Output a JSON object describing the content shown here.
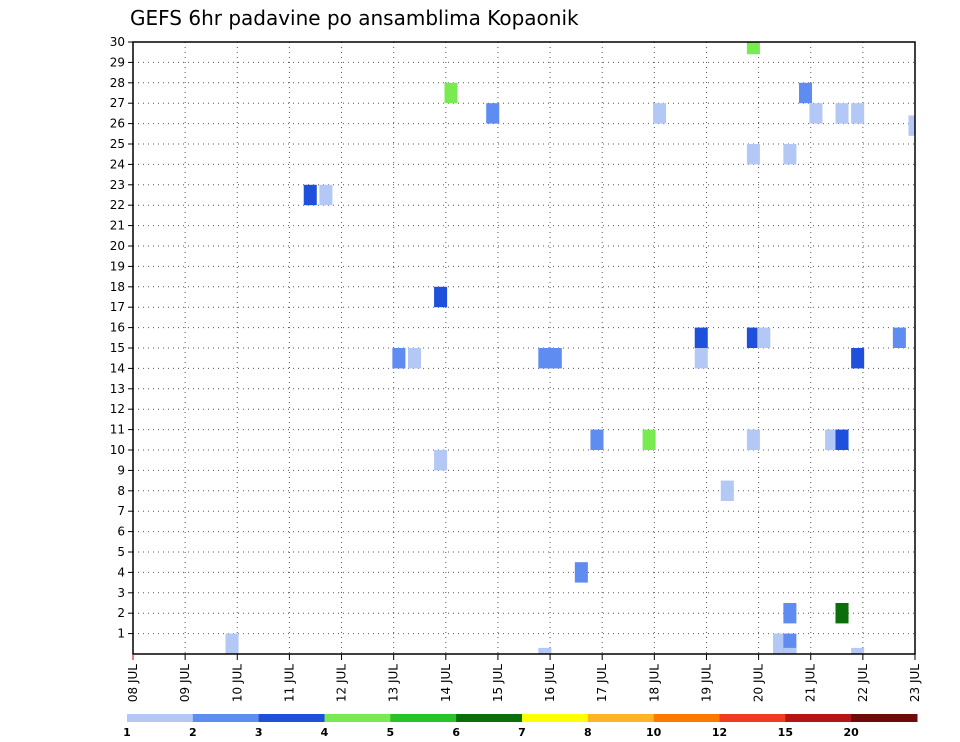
{
  "chart_data": {
    "type": "heatmap",
    "title": "GEFS 6hr padavine po ansamblima Kopaonik",
    "xlabel": "",
    "ylabel": "",
    "x_tick_labels": [
      "08 JUL",
      "09 JUL",
      "10 JUL",
      "11 JUL",
      "12 JUL",
      "13 JUL",
      "14 JUL",
      "15 JUL",
      "16 JUL",
      "17 JUL",
      "18 JUL",
      "19 JUL",
      "20 JUL",
      "21 JUL",
      "22 JUL",
      "23 JUL"
    ],
    "y_tick_labels": [
      "1",
      "2",
      "3",
      "4",
      "5",
      "6",
      "7",
      "8",
      "9",
      "10",
      "11",
      "12",
      "13",
      "14",
      "15",
      "16",
      "17",
      "18",
      "19",
      "20",
      "21",
      "22",
      "23",
      "24",
      "25",
      "26",
      "27",
      "28",
      "29",
      "30"
    ],
    "xlim": [
      8,
      23
    ],
    "ylim": [
      0,
      30
    ],
    "grid": true,
    "legend_placement": "bottom",
    "color_scale": {
      "labels": [
        "1",
        "2",
        "3",
        "4",
        "5",
        "6",
        "7",
        "8",
        "10",
        "12",
        "15",
        "20"
      ],
      "colors": [
        "#b4c8f5",
        "#5f8cf0",
        "#1e50dc",
        "#78eb50",
        "#28c328",
        "#0a6e0a",
        "#ffff00",
        "#ffb428",
        "#ff7800",
        "#f03c1e",
        "#b41414",
        "#6e0a0a"
      ]
    },
    "cells": [
      {
        "day": 9.9,
        "member": 0.5,
        "value": 1
      },
      {
        "day": 11.4,
        "member": 22.5,
        "value": 3
      },
      {
        "day": 11.7,
        "member": 22.5,
        "value": 1
      },
      {
        "day": 13.1,
        "member": 14.5,
        "value": 2
      },
      {
        "day": 13.4,
        "member": 14.5,
        "value": 1
      },
      {
        "day": 13.9,
        "member": 17.5,
        "value": 3
      },
      {
        "day": 13.9,
        "member": 9.5,
        "value": 1
      },
      {
        "day": 14.1,
        "member": 27.5,
        "value": 4
      },
      {
        "day": 14.9,
        "member": 26.5,
        "value": 2
      },
      {
        "day": 15.9,
        "member": 14.5,
        "value": 2
      },
      {
        "day": 16.1,
        "member": 14.5,
        "value": 2
      },
      {
        "day": 15.9,
        "member": -0.2,
        "value": 1
      },
      {
        "day": 16.6,
        "member": 4.0,
        "value": 2
      },
      {
        "day": 16.9,
        "member": 10.5,
        "value": 2
      },
      {
        "day": 17.9,
        "member": 10.5,
        "value": 4
      },
      {
        "day": 18.1,
        "member": 26.5,
        "value": 1
      },
      {
        "day": 18.9,
        "member": 15.5,
        "value": 3
      },
      {
        "day": 18.9,
        "member": 14.5,
        "value": 1
      },
      {
        "day": 19.4,
        "member": 8.0,
        "value": 1
      },
      {
        "day": 19.9,
        "member": 29.9,
        "value": 4
      },
      {
        "day": 19.9,
        "member": 24.5,
        "value": 1
      },
      {
        "day": 19.9,
        "member": 15.5,
        "value": 3
      },
      {
        "day": 20.1,
        "member": 15.5,
        "value": 1
      },
      {
        "day": 19.9,
        "member": 10.5,
        "value": 1
      },
      {
        "day": 20.4,
        "member": 0.5,
        "value": 1
      },
      {
        "day": 20.6,
        "member": 24.5,
        "value": 1
      },
      {
        "day": 20.6,
        "member": 2.0,
        "value": 2
      },
      {
        "day": 20.6,
        "member": 0.5,
        "value": 2
      },
      {
        "day": 20.6,
        "member": -0.2,
        "value": 1
      },
      {
        "day": 20.9,
        "member": 27.5,
        "value": 2
      },
      {
        "day": 21.1,
        "member": 26.5,
        "value": 1
      },
      {
        "day": 21.4,
        "member": 10.5,
        "value": 1
      },
      {
        "day": 21.6,
        "member": 26.5,
        "value": 1
      },
      {
        "day": 21.6,
        "member": 10.5,
        "value": 3
      },
      {
        "day": 21.6,
        "member": 2.0,
        "value": 6
      },
      {
        "day": 21.9,
        "member": 26.5,
        "value": 1
      },
      {
        "day": 21.9,
        "member": 14.5,
        "value": 3
      },
      {
        "day": 21.9,
        "member": -0.2,
        "value": 1
      },
      {
        "day": 22.7,
        "member": 15.5,
        "value": 2
      },
      {
        "day": 23.0,
        "member": 25.9,
        "value": 1
      }
    ]
  }
}
